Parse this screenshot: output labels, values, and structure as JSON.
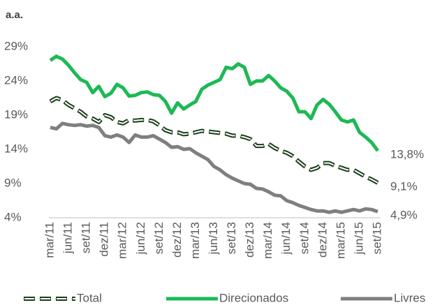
{
  "chart_data": {
    "type": "line",
    "title": "a.a.",
    "categories": [
      "mar/11",
      null,
      null,
      "jun/11",
      null,
      null,
      "set/11",
      null,
      null,
      "dez/11",
      null,
      null,
      "mar/12",
      null,
      null,
      "jun/12",
      null,
      null,
      "set/12",
      null,
      null,
      "dez/12",
      null,
      null,
      "mar/13",
      null,
      null,
      "jun/13",
      null,
      null,
      "set/13",
      null,
      null,
      "dez/13",
      null,
      null,
      "mar/14",
      null,
      null,
      "jun/14",
      null,
      null,
      "set/14",
      null,
      null,
      "dez/14",
      null,
      null,
      "mar/15",
      null,
      null,
      "jun/15",
      null,
      null,
      "set/15"
    ],
    "series": [
      {
        "name": "Direcionados",
        "color": "#1db954",
        "style": "solid",
        "values": [
          27.0,
          27.6,
          27.2,
          26.3,
          25.2,
          24.2,
          23.8,
          22.3,
          23.2,
          21.7,
          22.2,
          23.5,
          23.0,
          21.8,
          21.9,
          22.3,
          22.4,
          22.0,
          21.9,
          21.0,
          19.3,
          20.8,
          19.9,
          20.5,
          21.0,
          22.8,
          23.4,
          23.8,
          24.2,
          26.0,
          25.8,
          26.5,
          26.0,
          23.5,
          24.0,
          24.0,
          24.8,
          24.0,
          23.0,
          22.5,
          21.5,
          19.5,
          19.5,
          18.5,
          20.5,
          21.3,
          20.6,
          19.5,
          18.3,
          18.0,
          18.3,
          16.5,
          15.8,
          15.0,
          13.8
        ],
        "value_labels": [
          null,
          null,
          null,
          null,
          null,
          null,
          null,
          null,
          null,
          null,
          null,
          null,
          null,
          null,
          null,
          null,
          null,
          null,
          null,
          null,
          null,
          null,
          null,
          null,
          null,
          null,
          null,
          null,
          null,
          null,
          null,
          null,
          null,
          null,
          null,
          null,
          null,
          null,
          null,
          null,
          null,
          null,
          null,
          null,
          null,
          null,
          null,
          null,
          null,
          null,
          null,
          null,
          null,
          null,
          "13,8%"
        ]
      },
      {
        "name": "Total",
        "color": "#1a3d1a",
        "style": "dashed",
        "values": [
          21.0,
          21.5,
          21.2,
          20.5,
          20.0,
          19.5,
          18.8,
          18.5,
          18.0,
          19.0,
          18.7,
          18.0,
          17.8,
          18.3,
          18.2,
          18.3,
          18.3,
          18.1,
          17.5,
          16.8,
          16.5,
          16.5,
          16.2,
          16.3,
          16.5,
          16.7,
          16.6,
          16.5,
          16.4,
          16.3,
          16.0,
          16.0,
          15.8,
          15.5,
          14.5,
          14.5,
          14.8,
          14.2,
          13.8,
          13.5,
          13.0,
          12.2,
          11.5,
          11.0,
          11.3,
          12.0,
          12.0,
          11.6,
          11.3,
          11.0,
          11.0,
          10.5,
          10.0,
          9.6,
          9.1
        ],
        "value_labels": [
          null,
          null,
          null,
          null,
          null,
          null,
          null,
          null,
          null,
          null,
          null,
          null,
          null,
          null,
          null,
          null,
          null,
          null,
          null,
          null,
          null,
          null,
          null,
          null,
          null,
          null,
          null,
          null,
          null,
          null,
          null,
          null,
          null,
          null,
          null,
          null,
          null,
          null,
          null,
          null,
          null,
          null,
          null,
          null,
          null,
          null,
          null,
          null,
          null,
          null,
          null,
          null,
          null,
          null,
          "9,1%"
        ]
      },
      {
        "name": "Livres",
        "color": "#7f7f7f",
        "style": "solid",
        "values": [
          17.2,
          17.0,
          17.8,
          17.6,
          17.5,
          17.6,
          17.4,
          17.5,
          17.2,
          16.0,
          15.8,
          16.1,
          15.8,
          15.0,
          16.1,
          15.8,
          15.8,
          16.0,
          15.5,
          15.0,
          14.3,
          14.4,
          14.0,
          14.1,
          13.5,
          13.0,
          12.5,
          11.5,
          11.0,
          10.3,
          9.8,
          9.4,
          9.0,
          8.9,
          8.3,
          8.2,
          7.8,
          7.3,
          7.2,
          6.5,
          6.2,
          5.8,
          5.5,
          5.2,
          5.0,
          5.0,
          4.8,
          5.0,
          4.8,
          5.0,
          5.2,
          5.0,
          5.3,
          5.2,
          4.9
        ],
        "value_labels": [
          null,
          null,
          null,
          null,
          null,
          null,
          null,
          null,
          null,
          null,
          null,
          null,
          null,
          null,
          null,
          null,
          null,
          null,
          null,
          null,
          null,
          null,
          null,
          null,
          null,
          null,
          null,
          null,
          null,
          null,
          null,
          null,
          null,
          null,
          null,
          null,
          null,
          null,
          null,
          null,
          null,
          null,
          null,
          null,
          null,
          null,
          null,
          null,
          null,
          null,
          null,
          null,
          null,
          null,
          "4,9%"
        ]
      }
    ],
    "ylim": [
      4,
      29
    ],
    "yticks": [
      {
        "value": 4,
        "label": "4%"
      },
      {
        "value": 9,
        "label": "9%"
      },
      {
        "value": 14,
        "label": "14%"
      },
      {
        "value": 19,
        "label": "19%"
      },
      {
        "value": 24,
        "label": "24%"
      },
      {
        "value": 29,
        "label": "29%"
      }
    ],
    "legend": "bottom",
    "grid": false
  }
}
